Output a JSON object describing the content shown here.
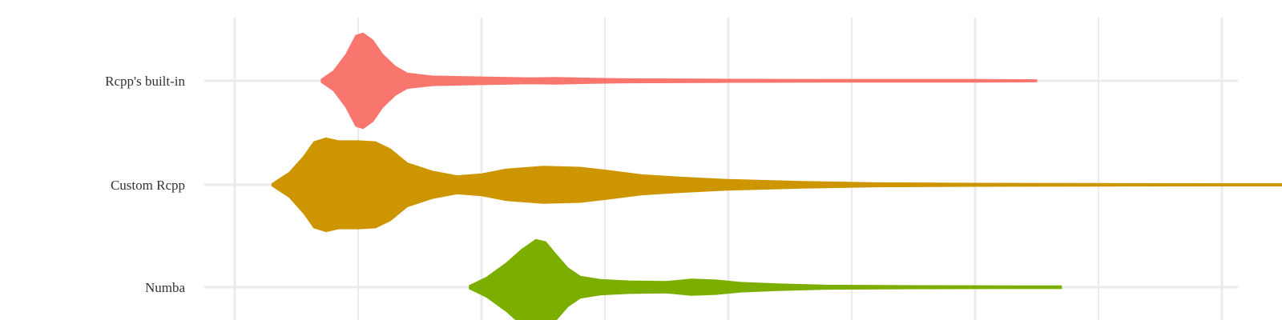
{
  "chart_data": {
    "type": "violin",
    "orientation": "horizontal",
    "title": "",
    "xlabel": "",
    "ylabel": "",
    "legend": "none",
    "grid": true,
    "x_gridlines": [
      1,
      2,
      3,
      4,
      5,
      6,
      7,
      8
    ],
    "x_minor_gridlines": [
      1.5,
      2.5,
      3.5,
      4.5,
      5.5,
      6.5,
      7.5
    ],
    "categories": [
      "Rcpp's built-in",
      "Custom Rcpp",
      "Numba"
    ],
    "series": [
      {
        "name": "Rcpp's built-in",
        "color": "#F8766D",
        "range": [
          1.35,
          4.25
        ],
        "density": [
          [
            1.35,
            0.02
          ],
          [
            1.4,
            0.2
          ],
          [
            1.45,
            0.55
          ],
          [
            1.49,
            0.95
          ],
          [
            1.52,
            1.0
          ],
          [
            1.56,
            0.85
          ],
          [
            1.6,
            0.55
          ],
          [
            1.65,
            0.3
          ],
          [
            1.7,
            0.15
          ],
          [
            1.8,
            0.09
          ],
          [
            2.0,
            0.07
          ],
          [
            2.2,
            0.05
          ],
          [
            2.3,
            0.06
          ],
          [
            2.45,
            0.04
          ],
          [
            2.6,
            0.03
          ],
          [
            2.9,
            0.025
          ],
          [
            3.0,
            0.02
          ],
          [
            3.1,
            0.02
          ],
          [
            3.4,
            0.015
          ],
          [
            4.0,
            0.015
          ],
          [
            4.25,
            0.01
          ]
        ]
      },
      {
        "name": "Custom Rcpp",
        "color": "#CD9600",
        "range": [
          1.15,
          5.6
        ],
        "density": [
          [
            1.15,
            0.01
          ],
          [
            1.22,
            0.25
          ],
          [
            1.28,
            0.6
          ],
          [
            1.32,
            0.9
          ],
          [
            1.37,
            0.98
          ],
          [
            1.42,
            0.92
          ],
          [
            1.5,
            0.92
          ],
          [
            1.57,
            0.9
          ],
          [
            1.63,
            0.75
          ],
          [
            1.7,
            0.45
          ],
          [
            1.8,
            0.28
          ],
          [
            1.9,
            0.18
          ],
          [
            2.0,
            0.22
          ],
          [
            2.1,
            0.32
          ],
          [
            2.25,
            0.38
          ],
          [
            2.4,
            0.36
          ],
          [
            2.5,
            0.3
          ],
          [
            2.65,
            0.2
          ],
          [
            2.8,
            0.15
          ],
          [
            3.0,
            0.1
          ],
          [
            3.3,
            0.06
          ],
          [
            3.6,
            0.03
          ],
          [
            4.0,
            0.02
          ],
          [
            4.5,
            0.015
          ],
          [
            5.0,
            0.012
          ],
          [
            5.6,
            0.01
          ]
        ]
      },
      {
        "name": "Numba",
        "color": "#7CAE00",
        "range": [
          1.95,
          4.35
        ],
        "density": [
          [
            1.95,
            0.02
          ],
          [
            2.02,
            0.2
          ],
          [
            2.1,
            0.5
          ],
          [
            2.16,
            0.78
          ],
          [
            2.22,
            1.0
          ],
          [
            2.26,
            0.95
          ],
          [
            2.3,
            0.7
          ],
          [
            2.35,
            0.4
          ],
          [
            2.4,
            0.22
          ],
          [
            2.48,
            0.15
          ],
          [
            2.6,
            0.12
          ],
          [
            2.75,
            0.11
          ],
          [
            2.85,
            0.16
          ],
          [
            2.95,
            0.14
          ],
          [
            3.05,
            0.09
          ],
          [
            3.2,
            0.06
          ],
          [
            3.4,
            0.03
          ],
          [
            3.8,
            0.02
          ],
          [
            4.35,
            0.015
          ]
        ]
      }
    ]
  }
}
